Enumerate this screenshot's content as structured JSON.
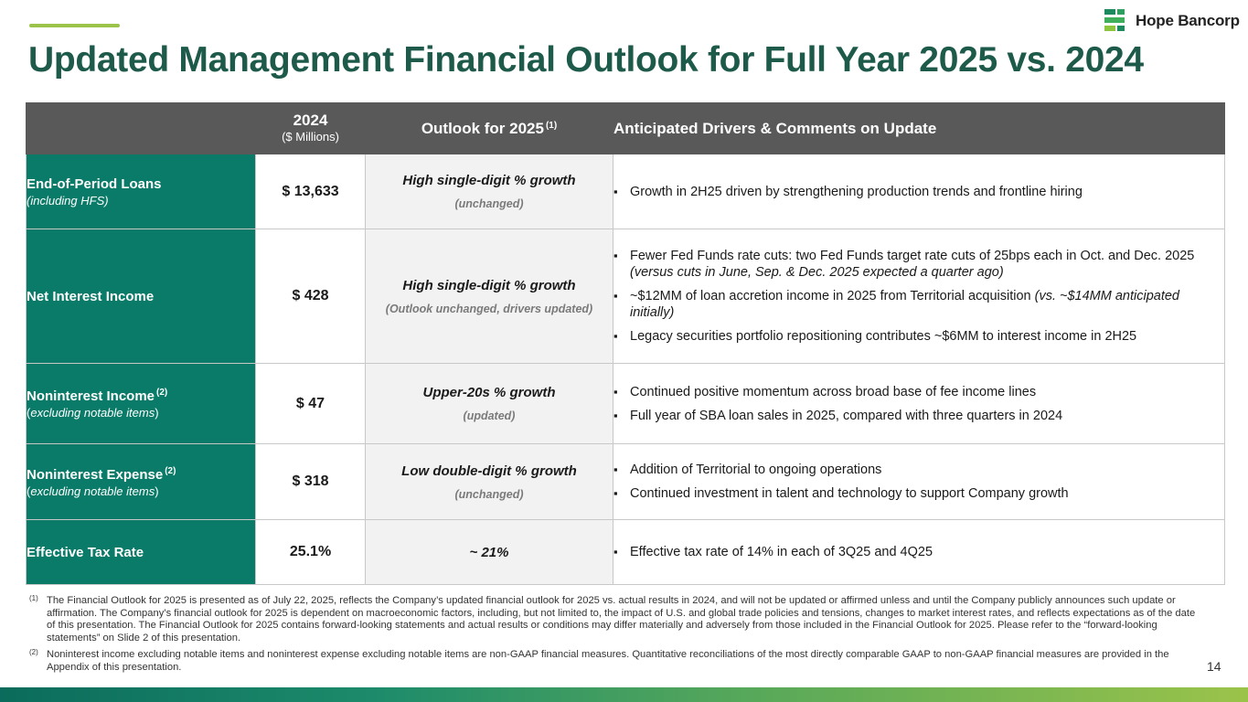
{
  "title": "Updated Management Financial Outlook for Full Year 2025 vs. 2024",
  "logo": {
    "name": "Hope Bancorp",
    "icon": "hope-bancorp-logo-mark"
  },
  "colors": {
    "title": "#1d5a49",
    "label_bg": "#0a7b68",
    "header_bg": "#595959",
    "accent": "#9bc34a"
  },
  "table": {
    "headers": {
      "year": "2024",
      "year_sub": "($ Millions)",
      "outlook": "Outlook for 2025",
      "outlook_sup": "(1)",
      "drivers": "Anticipated Drivers & Comments on Update"
    },
    "rows": [
      {
        "label": "End-of-Period Loans",
        "label_sup": "",
        "label_sub": "(including HFS)",
        "value": "$ 13,633",
        "outlook": "High single-digit % growth",
        "outlook_note": "(unchanged)",
        "drivers": [
          {
            "text": "Growth in 2H25 driven by strengthening production trends and frontline hiring",
            "italic": ""
          }
        ]
      },
      {
        "label": "Net Interest Income",
        "label_sup": "",
        "label_sub": "",
        "value": "$ 428",
        "outlook": "High single-digit % growth",
        "outlook_note": "(Outlook unchanged, drivers updated)",
        "drivers": [
          {
            "text": "Fewer Fed Funds rate cuts: two Fed Funds target rate cuts of 25bps each in Oct. and Dec. 2025 ",
            "italic": "(versus cuts in June, Sep. & Dec. 2025 expected a quarter ago)"
          },
          {
            "text": "~$12MM of loan accretion income in 2025 from Territorial acquisition ",
            "italic": "(vs. ~$14MM anticipated initially)"
          },
          {
            "text": "Legacy securities portfolio repositioning contributes ~$6MM to interest income in 2H25",
            "italic": ""
          }
        ]
      },
      {
        "label": "Noninterest Income",
        "label_sup": "(2)",
        "label_sub_open": "(",
        "label_sub_it": "excluding notable items",
        "label_sub_close": ")",
        "value": "$ 47",
        "outlook": "Upper-20s % growth",
        "outlook_note": "(updated)",
        "drivers": [
          {
            "text": "Continued positive momentum across broad base of fee income lines",
            "italic": ""
          },
          {
            "text": "Full year of SBA loan sales in 2025, compared with three quarters in 2024",
            "italic": ""
          }
        ]
      },
      {
        "label": "Noninterest Expense",
        "label_sup": "(2)",
        "label_sub_open": "(",
        "label_sub_it": "excluding notable items",
        "label_sub_close": ")",
        "value": "$ 318",
        "outlook": "Low double-digit % growth",
        "outlook_note": "(unchanged)",
        "drivers": [
          {
            "text": "Addition of Territorial to ongoing operations",
            "italic": ""
          },
          {
            "text": "Continued investment in talent and technology to support Company growth",
            "italic": ""
          }
        ]
      },
      {
        "label": "Effective Tax Rate",
        "label_sup": "",
        "label_sub": "",
        "value": "25.1%",
        "outlook": "~ 21%",
        "outlook_note": "",
        "drivers": [
          {
            "text": "Effective tax rate of 14% in each of 3Q25 and 4Q25",
            "italic": ""
          }
        ]
      }
    ]
  },
  "footnotes": [
    {
      "mark": "(1)",
      "text": "The Financial Outlook for 2025 is presented as of July 22, 2025, reflects the Company’s updated financial outlook for 2025 vs. actual results in 2024, and will not be updated or affirmed unless and until the Company publicly announces such update or affirmation. The Company’s financial outlook for 2025 is dependent on macroeconomic factors, including, but not limited to, the impact of U.S. and global trade policies and tensions, changes to market interest rates, and reflects expectations as of the date of this presentation. The Financial Outlook for 2025 contains forward-looking statements and actual results or conditions may differ materially and adversely from those included in the Financial Outlook for 2025. Please refer to the “forward-looking statements” on Slide 2 of this presentation."
    },
    {
      "mark": "(2)",
      "text": "Noninterest income excluding notable items and noninterest expense excluding notable items are non-GAAP financial measures. Quantitative reconciliations of the most directly comparable GAAP to non-GAAP financial measures are provided in the Appendix of this presentation."
    }
  ],
  "page_number": "14"
}
